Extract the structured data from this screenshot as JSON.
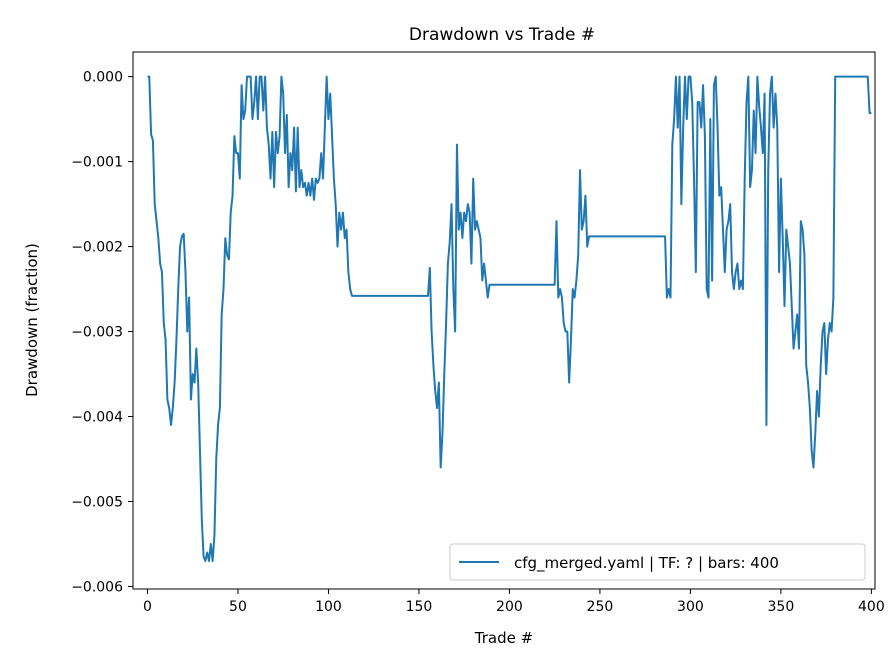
{
  "chart_data": {
    "type": "line",
    "title": "Drawdown vs Trade #",
    "xlabel": "Trade #",
    "ylabel": "Drawdown (fraction)",
    "xlim": [
      -8,
      402
    ],
    "ylim": [
      -0.00603,
      0.00029
    ],
    "x_ticks": [
      0,
      50,
      100,
      150,
      200,
      250,
      300,
      350,
      400
    ],
    "x_tick_labels": [
      "0",
      "50",
      "100",
      "150",
      "200",
      "250",
      "300",
      "350",
      "400"
    ],
    "y_ticks": [
      0.0,
      -0.001,
      -0.002,
      -0.003,
      -0.004,
      -0.005,
      -0.006
    ],
    "y_tick_labels": [
      "0.000",
      "−0.001",
      "−0.002",
      "−0.003",
      "−0.004",
      "−0.005",
      "−0.006"
    ],
    "grid": false,
    "legend_position": "lower-right",
    "series_color": "#1f77b4",
    "series": [
      {
        "name": "cfg_merged.yaml | TF: ? | bars: 400",
        "points": [
          [
            0,
            0.0
          ],
          [
            1,
            0.0
          ],
          [
            2,
            -0.00068
          ],
          [
            3,
            -0.00075
          ],
          [
            4,
            -0.0015
          ],
          [
            5,
            -0.0017
          ],
          [
            6,
            -0.0019
          ],
          [
            7,
            -0.0022
          ],
          [
            8,
            -0.0023
          ],
          [
            9,
            -0.0029
          ],
          [
            10,
            -0.0031
          ],
          [
            11,
            -0.0038
          ],
          [
            12,
            -0.0039
          ],
          [
            13,
            -0.0041
          ],
          [
            14,
            -0.0039
          ],
          [
            15,
            -0.0036
          ],
          [
            16,
            -0.0031
          ],
          [
            17,
            -0.0025
          ],
          [
            18,
            -0.002
          ],
          [
            19,
            -0.00188
          ],
          [
            20,
            -0.00185
          ],
          [
            21,
            -0.0023
          ],
          [
            22,
            -0.003
          ],
          [
            23,
            -0.0026
          ],
          [
            24,
            -0.0038
          ],
          [
            25,
            -0.0035
          ],
          [
            26,
            -0.0036
          ],
          [
            27,
            -0.0032
          ],
          [
            28,
            -0.0036
          ],
          [
            29,
            -0.0044
          ],
          [
            30,
            -0.0052
          ],
          [
            31,
            -0.00565
          ],
          [
            32,
            -0.0057
          ],
          [
            33,
            -0.0056
          ],
          [
            34,
            -0.0057
          ],
          [
            35,
            -0.0055
          ],
          [
            36,
            -0.0057
          ],
          [
            37,
            -0.0054
          ],
          [
            38,
            -0.0045
          ],
          [
            39,
            -0.0041
          ],
          [
            40,
            -0.0039
          ],
          [
            41,
            -0.0028
          ],
          [
            42,
            -0.0025
          ],
          [
            43,
            -0.0019
          ],
          [
            44,
            -0.0021
          ],
          [
            45,
            -0.00215
          ],
          [
            46,
            -0.0016
          ],
          [
            47,
            -0.0014
          ],
          [
            48,
            -0.0007
          ],
          [
            49,
            -0.0009
          ],
          [
            50,
            -0.0009
          ],
          [
            51,
            -0.0012
          ],
          [
            52,
            -0.0001
          ],
          [
            53,
            -0.0005
          ],
          [
            54,
            -0.0004
          ],
          [
            55,
            0.0
          ],
          [
            56,
            0.0
          ],
          [
            57,
            0.0
          ],
          [
            58,
            -0.0005
          ],
          [
            59,
            -0.0003
          ],
          [
            60,
            0.0
          ],
          [
            61,
            -0.0005
          ],
          [
            62,
            0.0
          ],
          [
            63,
            0.0
          ],
          [
            64,
            -0.0004
          ],
          [
            65,
            0.0
          ],
          [
            66,
            -0.0006
          ],
          [
            67,
            -0.0008
          ],
          [
            68,
            -0.0012
          ],
          [
            69,
            -0.00065
          ],
          [
            70,
            -0.0013
          ],
          [
            71,
            -0.00065
          ],
          [
            72,
            -0.0009
          ],
          [
            73,
            -0.0007
          ],
          [
            74,
            0.0
          ],
          [
            75,
            -0.0002
          ],
          [
            76,
            -0.0009
          ],
          [
            77,
            -0.00045
          ],
          [
            78,
            -0.0013
          ],
          [
            79,
            -0.0009
          ],
          [
            80,
            -0.0011
          ],
          [
            81,
            -0.0006
          ],
          [
            82,
            -0.00135
          ],
          [
            83,
            -0.0006
          ],
          [
            84,
            -0.0013
          ],
          [
            85,
            -0.0011
          ],
          [
            86,
            -0.0013
          ],
          [
            87,
            -0.00125
          ],
          [
            88,
            -0.0014
          ],
          [
            89,
            -0.00125
          ],
          [
            90,
            -0.0014
          ],
          [
            91,
            -0.0012
          ],
          [
            92,
            -0.00145
          ],
          [
            93,
            -0.0012
          ],
          [
            94,
            -0.00125
          ],
          [
            95,
            -0.0012
          ],
          [
            96,
            -0.0009
          ],
          [
            97,
            -0.0012
          ],
          [
            98,
            -0.0006
          ],
          [
            99,
            0.0
          ],
          [
            100,
            -0.0005
          ],
          [
            101,
            -0.0002
          ],
          [
            102,
            -0.0007
          ],
          [
            103,
            -0.0012
          ],
          [
            104,
            -0.0015
          ],
          [
            105,
            -0.002
          ],
          [
            106,
            -0.0016
          ],
          [
            107,
            -0.0018
          ],
          [
            108,
            -0.0016
          ],
          [
            109,
            -0.0019
          ],
          [
            110,
            -0.0018
          ],
          [
            111,
            -0.0023
          ],
          [
            112,
            -0.0025
          ],
          [
            113,
            -0.00258
          ],
          [
            155,
            -0.00258
          ],
          [
            156,
            -0.00225
          ],
          [
            157,
            -0.003
          ],
          [
            158,
            -0.0034
          ],
          [
            159,
            -0.0037
          ],
          [
            160,
            -0.0039
          ],
          [
            161,
            -0.0036
          ],
          [
            162,
            -0.0046
          ],
          [
            163,
            -0.0042
          ],
          [
            164,
            -0.0035
          ],
          [
            165,
            -0.0029
          ],
          [
            166,
            -0.0022
          ],
          [
            167,
            -0.00195
          ],
          [
            168,
            -0.0015
          ],
          [
            169,
            -0.0025
          ],
          [
            170,
            -0.003
          ],
          [
            171,
            -0.0008
          ],
          [
            172,
            -0.0018
          ],
          [
            173,
            -0.0016
          ],
          [
            174,
            -0.0019
          ],
          [
            175,
            -0.0016
          ],
          [
            176,
            -0.0017
          ],
          [
            177,
            -0.0015
          ],
          [
            178,
            -0.0016
          ],
          [
            179,
            -0.0022
          ],
          [
            180,
            -0.0012
          ],
          [
            181,
            -0.0018
          ],
          [
            182,
            -0.0017
          ],
          [
            183,
            -0.0018
          ],
          [
            184,
            -0.0019
          ],
          [
            185,
            -0.0024
          ],
          [
            186,
            -0.0022
          ],
          [
            187,
            -0.0024
          ],
          [
            188,
            -0.0026
          ],
          [
            189,
            -0.00245
          ],
          [
            225,
            -0.00245
          ],
          [
            226,
            -0.0017
          ],
          [
            227,
            -0.0026
          ],
          [
            228,
            -0.0025
          ],
          [
            229,
            -0.0026
          ],
          [
            230,
            -0.0029
          ],
          [
            231,
            -0.003
          ],
          [
            232,
            -0.003
          ],
          [
            233,
            -0.0036
          ],
          [
            234,
            -0.0031
          ],
          [
            235,
            -0.0025
          ],
          [
            236,
            -0.0026
          ],
          [
            237,
            -0.0024
          ],
          [
            238,
            -0.0021
          ],
          [
            239,
            -0.0011
          ],
          [
            240,
            -0.0018
          ],
          [
            241,
            -0.0017
          ],
          [
            242,
            -0.0014
          ],
          [
            243,
            -0.002
          ],
          [
            244,
            -0.00188
          ],
          [
            286,
            -0.00188
          ],
          [
            287,
            -0.0026
          ],
          [
            288,
            -0.0025
          ],
          [
            289,
            -0.0026
          ],
          [
            290,
            -0.0008
          ],
          [
            291,
            -0.0005
          ],
          [
            292,
            0.0
          ],
          [
            293,
            -0.0006
          ],
          [
            294,
            0.0
          ],
          [
            295,
            -0.0015
          ],
          [
            296,
            -0.0006
          ],
          [
            297,
            0.0
          ],
          [
            298,
            -0.0005
          ],
          [
            299,
            0.0
          ],
          [
            300,
            0.0
          ],
          [
            301,
            -0.0003
          ],
          [
            302,
            -0.0012
          ],
          [
            303,
            -0.0023
          ],
          [
            304,
            -0.0003
          ],
          [
            305,
            -0.0003
          ],
          [
            306,
            -0.0006
          ],
          [
            307,
            -0.0001
          ],
          [
            308,
            -0.0007
          ],
          [
            309,
            -0.0025
          ],
          [
            310,
            -0.0026
          ],
          [
            311,
            -0.0005
          ],
          [
            312,
            -0.0024
          ],
          [
            313,
            -0.0001
          ],
          [
            314,
            0.0
          ],
          [
            315,
            -0.0006
          ],
          [
            316,
            -0.0014
          ],
          [
            317,
            -0.0013
          ],
          [
            318,
            -0.0018
          ],
          [
            319,
            -0.0023
          ],
          [
            320,
            -0.0018
          ],
          [
            321,
            -0.0017
          ],
          [
            322,
            -0.0015
          ],
          [
            323,
            -0.0023
          ],
          [
            324,
            -0.0025
          ],
          [
            325,
            -0.0023
          ],
          [
            326,
            -0.0022
          ],
          [
            327,
            -0.0025
          ],
          [
            328,
            -0.0024
          ],
          [
            329,
            -0.0025
          ],
          [
            330,
            -0.0012
          ],
          [
            331,
            -0.0003
          ],
          [
            332,
            0.0
          ],
          [
            333,
            -0.0013
          ],
          [
            334,
            -0.0011
          ],
          [
            335,
            -0.0004
          ],
          [
            336,
            -0.0009
          ],
          [
            337,
            0.0
          ],
          [
            338,
            -0.00035
          ],
          [
            339,
            -0.0006
          ],
          [
            340,
            -0.0009
          ],
          [
            341,
            -0.0002
          ],
          [
            342,
            -0.0041
          ],
          [
            343,
            -0.0011
          ],
          [
            344,
            -0.0002
          ],
          [
            345,
            0.0
          ],
          [
            346,
            -0.0006
          ],
          [
            347,
            -0.0002
          ],
          [
            348,
            -0.0006
          ],
          [
            349,
            -0.0023
          ],
          [
            350,
            -0.0012
          ],
          [
            351,
            -0.0019
          ],
          [
            352,
            -0.0027
          ],
          [
            353,
            -0.0018
          ],
          [
            354,
            -0.002
          ],
          [
            355,
            -0.0022
          ],
          [
            356,
            -0.0027
          ],
          [
            357,
            -0.0032
          ],
          [
            358,
            -0.003
          ],
          [
            359,
            -0.0028
          ],
          [
            360,
            -0.0032
          ],
          [
            361,
            -0.0017
          ],
          [
            362,
            -0.0018
          ],
          [
            363,
            -0.0021
          ],
          [
            364,
            -0.0034
          ],
          [
            365,
            -0.0036
          ],
          [
            366,
            -0.0039
          ],
          [
            367,
            -0.0044
          ],
          [
            368,
            -0.0046
          ],
          [
            369,
            -0.0042
          ],
          [
            370,
            -0.0037
          ],
          [
            371,
            -0.004
          ],
          [
            372,
            -0.0034
          ],
          [
            373,
            -0.003
          ],
          [
            374,
            -0.0029
          ],
          [
            375,
            -0.0035
          ],
          [
            376,
            -0.0031
          ],
          [
            377,
            -0.0029
          ],
          [
            378,
            -0.003
          ],
          [
            379,
            -0.0026
          ],
          [
            380,
            0.0
          ],
          [
            398,
            0.0
          ],
          [
            399,
            -0.00043
          ],
          [
            400,
            -0.00043
          ]
        ]
      }
    ]
  }
}
